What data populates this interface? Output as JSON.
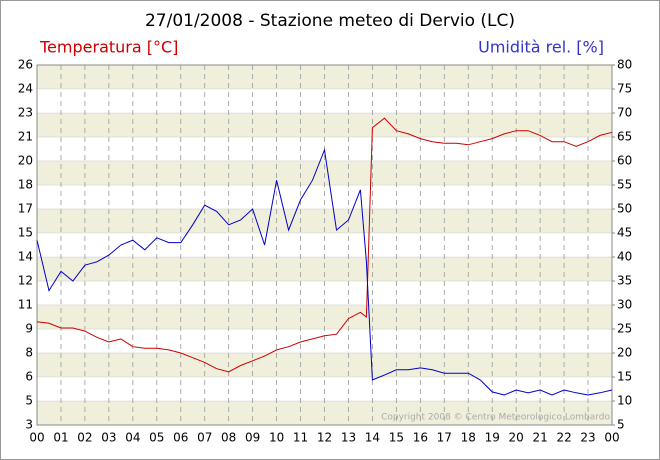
{
  "chart_data": {
    "type": "line",
    "title": "27/01/2008 - Stazione meteo di Dervio (LC)",
    "ylabel": "Temperatura [°C]",
    "y2label": "Umidità rel. [%]",
    "annotation": "Copyright 2008 © Centro Meteorologico Lombardo",
    "x": [
      0,
      0.5,
      1,
      1.5,
      2,
      2.5,
      3,
      3.5,
      4,
      4.5,
      5,
      5.5,
      6,
      6.5,
      7,
      7.5,
      8,
      8.5,
      9,
      9.5,
      10,
      10.5,
      11,
      11.5,
      12,
      12.5,
      13,
      13.5,
      13.75,
      14,
      14.5,
      15,
      15.5,
      16,
      16.5,
      17,
      17.5,
      18,
      18.5,
      19,
      19.5,
      20,
      20.5,
      21,
      21.5,
      22,
      22.5,
      23,
      23.5,
      24
    ],
    "series": [
      {
        "name": "Temperatura",
        "color": "#cc0000",
        "axis": "y",
        "values": [
          9.6,
          9.5,
          9.2,
          9.2,
          9.0,
          8.6,
          8.3,
          8.5,
          8.0,
          7.9,
          7.9,
          7.8,
          7.6,
          7.3,
          7.0,
          6.6,
          6.4,
          6.8,
          7.1,
          7.4,
          7.8,
          8.0,
          8.3,
          8.5,
          8.7,
          8.8,
          9.8,
          10.2,
          9.9,
          22.0,
          22.6,
          21.8,
          21.6,
          21.3,
          21.1,
          21.0,
          21.0,
          20.9,
          21.1,
          21.3,
          21.6,
          21.8,
          21.8,
          21.5,
          21.1,
          21.1,
          20.8,
          21.1,
          21.5,
          21.7
        ]
      },
      {
        "name": "Umidità rel.",
        "color": "#0000cc",
        "axis": "y2",
        "values": [
          43.5,
          33,
          37,
          35,
          38.3,
          39,
          40.4,
          42.5,
          43.5,
          41.5,
          44,
          43,
          43,
          46.7,
          50.8,
          49.5,
          46.7,
          47.7,
          50,
          42.5,
          56,
          45.6,
          51.9,
          56,
          62.3,
          45.6,
          47.7,
          54,
          39,
          14.4,
          15.4,
          16.5,
          16.5,
          16.9,
          16.5,
          15.8,
          15.8,
          15.8,
          14.4,
          11.9,
          11.25,
          12.3,
          11.7,
          12.3,
          11.25,
          12.3,
          11.7,
          11.25,
          11.7,
          12.3
        ]
      }
    ],
    "xlim": [
      0,
      24
    ],
    "xticks": [
      {
        "value": 0,
        "label": "00"
      },
      {
        "value": 1,
        "label": "01"
      },
      {
        "value": 2,
        "label": "02"
      },
      {
        "value": 3,
        "label": "03"
      },
      {
        "value": 4,
        "label": "04"
      },
      {
        "value": 5,
        "label": "05"
      },
      {
        "value": 6,
        "label": "06"
      },
      {
        "value": 7,
        "label": "07"
      },
      {
        "value": 8,
        "label": "08"
      },
      {
        "value": 9,
        "label": "09"
      },
      {
        "value": 10,
        "label": "10"
      },
      {
        "value": 11,
        "label": "11"
      },
      {
        "value": 12,
        "label": "12"
      },
      {
        "value": 13,
        "label": "13"
      },
      {
        "value": 14,
        "label": "14"
      },
      {
        "value": 15,
        "label": "15"
      },
      {
        "value": 16,
        "label": "16"
      },
      {
        "value": 17,
        "label": "17"
      },
      {
        "value": 18,
        "label": "18"
      },
      {
        "value": 19,
        "label": "19"
      },
      {
        "value": 20,
        "label": "20"
      },
      {
        "value": 21,
        "label": "21"
      },
      {
        "value": 22,
        "label": "22"
      },
      {
        "value": 23,
        "label": "23"
      },
      {
        "value": 24,
        "label": "00"
      }
    ],
    "ylim": [
      3,
      26
    ],
    "yticks": [
      3,
      {
        "value": 4.53,
        "label": "5"
      },
      {
        "value": 6.07,
        "label": "6"
      },
      {
        "value": 7.6,
        "label": "8"
      },
      {
        "value": 9.13,
        "label": "9"
      },
      {
        "value": 10.67,
        "label": "11"
      },
      {
        "value": 12.2,
        "label": "12"
      },
      {
        "value": 13.73,
        "label": "14"
      },
      {
        "value": 15.27,
        "label": "15"
      },
      {
        "value": 16.8,
        "label": "17"
      },
      {
        "value": 18.33,
        "label": "18"
      },
      {
        "value": 19.87,
        "label": "20"
      },
      {
        "value": 21.4,
        "label": "21"
      },
      {
        "value": 22.93,
        "label": "23"
      },
      {
        "value": 24.47,
        "label": "24"
      },
      26
    ],
    "y2lim": [
      5,
      80
    ],
    "y2ticks": [
      5,
      10,
      15,
      20,
      25,
      30,
      35,
      40,
      45,
      50,
      55,
      60,
      65,
      70,
      75,
      80
    ],
    "grid": true
  }
}
